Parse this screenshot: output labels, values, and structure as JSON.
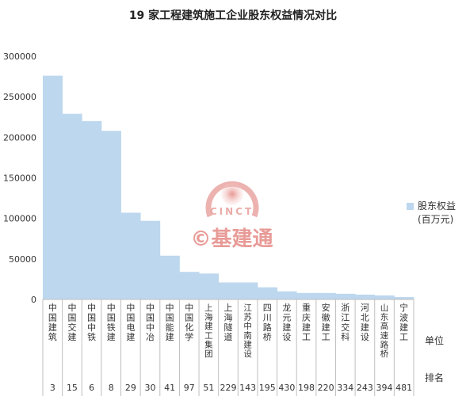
{
  "chart_data": {
    "type": "bar",
    "title": "19 家工程建筑施工企业股东权益情况对比",
    "series": [
      {
        "name": "股东权益",
        "values": [
          276000,
          229000,
          220000,
          208000,
          107000,
          97000,
          54000,
          34000,
          32000,
          21000,
          21000,
          15000,
          10000,
          8000,
          8000,
          7000,
          6000,
          5000,
          3000
        ]
      }
    ],
    "categories": [
      "中国建筑",
      "中国交建",
      "中国中铁",
      "中国铁建",
      "中国电建",
      "中国中冶",
      "中国能建",
      "中国化学",
      "上海建工集团",
      "上海隧道",
      "江苏中南建设",
      "四川路桥",
      "龙元建设",
      "重庆建工",
      "安徽建工",
      "浙江交科",
      "河北建设",
      "山东高速路桥",
      "宁波建工"
    ],
    "ranks": [
      "3",
      "15",
      "6",
      "8",
      "29",
      "30",
      "41",
      "97",
      "51",
      "229",
      "143",
      "195",
      "430",
      "198",
      "220",
      "334",
      "243",
      "394",
      "481"
    ],
    "ylim": [
      0,
      300000
    ],
    "yticks": [
      "0",
      "50000",
      "100000",
      "150000",
      "200000",
      "250000",
      "300000"
    ],
    "grid": false,
    "legend_position": "right",
    "colors": {
      "bar": "#bdd7ee",
      "text": "#333333",
      "axis": "#bfbfbf",
      "watermark": "#e58a86"
    }
  },
  "legend": {
    "line1": "股东权益",
    "line2": "(百万元)"
  },
  "row_labels": {
    "unit": "单位",
    "rank": "排名"
  },
  "watermark": {
    "text": "©基建通",
    "sub": "CINCT"
  }
}
